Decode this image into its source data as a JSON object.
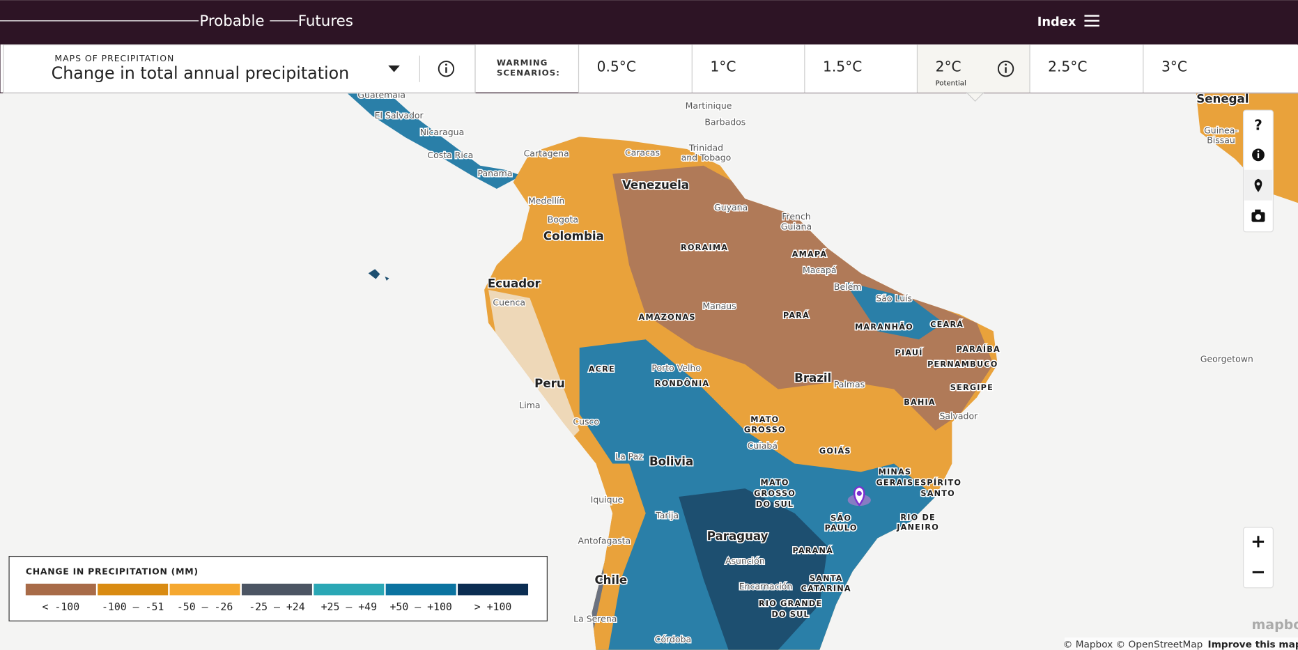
{
  "header": {
    "brand": [
      "Probable",
      "Futures"
    ],
    "index": "Index"
  },
  "toolbar": {
    "map_group": "MAPS OF PRECIPITATION",
    "map_title": "Change in total annual precipitation",
    "scenarios_label": [
      "WARMING",
      "SCENARIOS:"
    ],
    "scenarios": [
      "0.5°C",
      "1°C",
      "1.5°C",
      "2°C",
      "2.5°C",
      "3°C"
    ],
    "selected": 3,
    "selected_note": "Potential"
  },
  "controls": {
    "help": "?",
    "zoom_in": "+",
    "zoom_out": "−"
  },
  "legend": {
    "title": "CHANGE IN PRECIPITATION (MM)",
    "items": [
      {
        "label": "< -100",
        "color": "#a86b48"
      },
      {
        "label": "-100 – -51",
        "color": "#d98b12"
      },
      {
        "label": "-50 – -26",
        "color": "#f5a830"
      },
      {
        "label": "-25 – +24",
        "color": "#4c5563"
      },
      {
        "label": "+25 – +49",
        "color": "#2aa7b5"
      },
      {
        "label": "+50 – +100",
        "color": "#0b73a0"
      },
      {
        "label": "> +100",
        "color": "#0b2d52"
      }
    ]
  },
  "map": {
    "places": [
      "Guatemala",
      "El Salvador",
      "Nicaragua",
      "Costa Rica",
      "Panama",
      "Cartagena",
      "Caracas",
      "Martinique",
      "Barbados",
      "Trinidad",
      "and Tobago",
      "Venezuela",
      "Guyana",
      "French",
      "Guiana",
      "Medellín",
      "Bogota",
      "Colombia",
      "RORAIMA",
      "AMAPÁ",
      "Macapá",
      "Ecuador",
      "Cuenca",
      "Belém",
      "São Luís",
      "Manaus",
      "AMAZONAS",
      "PARÁ",
      "MARANHÃO",
      "CEARÁ",
      "PIAUÍ",
      "PARAÍBA",
      "PERNAMBUCO",
      "ACRE",
      "Porto Velho",
      "RONDÔNIA",
      "Brazil",
      "Palmas",
      "Peru",
      "SERGIPE",
      "BAHIA",
      "Lima",
      "Salvador",
      "MATO",
      "GROSSO",
      "Cusco",
      "Cuiabá",
      "GOIÁS",
      "La Paz",
      "Bolivia",
      "MINAS",
      "GERAIS",
      "ESPÍRITO",
      "SANTO",
      "MATO",
      "GROSSO",
      "DO SUL",
      "Iquique",
      "Tarija",
      "SÃO",
      "PAULO",
      "RIO DE",
      "JANEIRO",
      "Paraguay",
      "Antofagasta",
      "PARANÁ",
      "Asunción",
      "Chile",
      "SANTA",
      "CATARINA",
      "Encarnación",
      "RIO GRANDE",
      "DO SUL",
      "La Serena",
      "Córdoba",
      "Georgetown",
      "Senegal",
      "Guinea-",
      "Bissau"
    ]
  },
  "attribution": {
    "text": "© Mapbox © OpenStreetMap",
    "link": "Improve this map",
    "logo": "mapbox"
  }
}
